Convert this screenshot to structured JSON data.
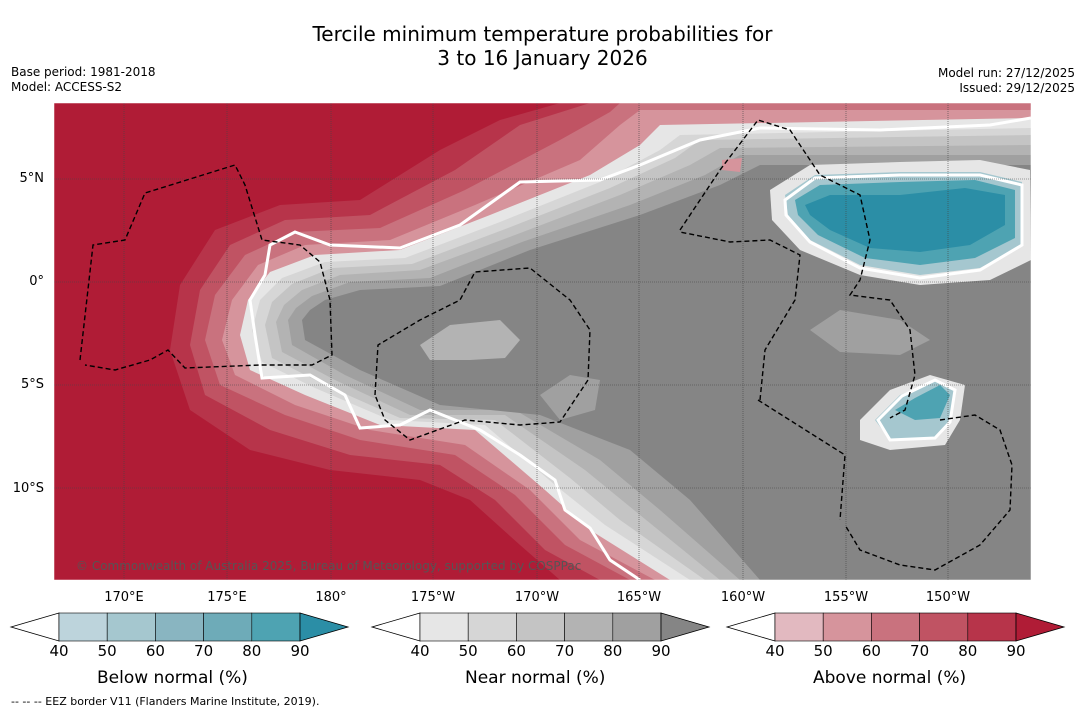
{
  "title": {
    "line1": "Tercile minimum temperature probabilities for",
    "line2": "3 to 16 January 2026"
  },
  "meta_left": {
    "base_period": "Base period: 1981-2018",
    "model": "Model: ACCESS-S2"
  },
  "meta_right": {
    "model_run": "Model run: 27/12/2025",
    "issued": "Issued: 29/12/2025"
  },
  "map": {
    "lat_labels": [
      "5°N",
      "0°",
      "5°S",
      "10°S"
    ],
    "lon_labels": [
      "170°E",
      "175°E",
      "180°",
      "175°W",
      "170°W",
      "165°W",
      "160°W",
      "155°W",
      "150°W"
    ],
    "copyright": "© Commonwealth of Australia 2025, Bureau of Meteorology, supported by COSPPac",
    "colors": {
      "above_bg": "#b01c36",
      "near_bg": "#858585",
      "below_core": "#2b8ea6"
    }
  },
  "colorbars": [
    {
      "name": "below",
      "title": "Below normal (%)",
      "ticks": [
        "40",
        "50",
        "60",
        "70",
        "80",
        "90"
      ],
      "colors": [
        "#bdd4dc",
        "#a5c7cf",
        "#89b5c1",
        "#6eabb8",
        "#4ea3b2",
        "#2b8ea6"
      ]
    },
    {
      "name": "near",
      "title": "Near normal (%)",
      "ticks": [
        "40",
        "50",
        "60",
        "70",
        "80",
        "90"
      ],
      "colors": [
        "#e6e6e6",
        "#d6d6d6",
        "#c4c4c4",
        "#b3b3b3",
        "#a0a0a0",
        "#858585"
      ]
    },
    {
      "name": "above",
      "title": "Above normal (%)",
      "ticks": [
        "40",
        "50",
        "60",
        "70",
        "80",
        "90"
      ],
      "colors": [
        "#e2b9c0",
        "#d6949c",
        "#c9727e",
        "#c05363",
        "#b7344a",
        "#b01c36"
      ]
    }
  ],
  "footnote": "--  --  -- EEZ border V11 (Flanders Marine Institute, 2019)."
}
